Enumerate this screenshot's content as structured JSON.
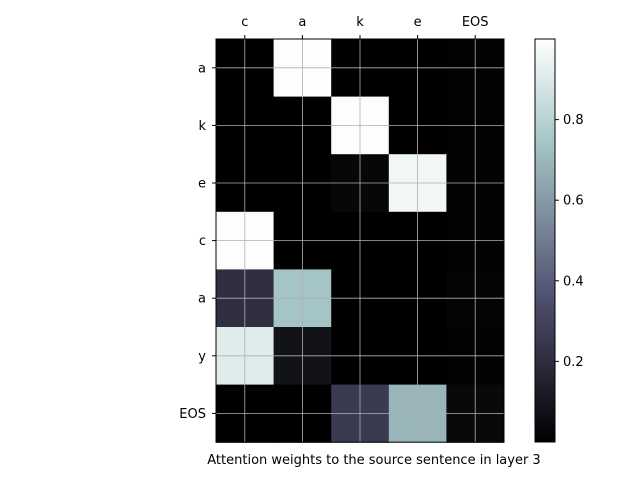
{
  "chart_data": {
    "type": "heatmap",
    "title": "",
    "xlabel": "Attention weights to the source sentence in layer 3",
    "ylabel": "",
    "x_categories": [
      "c",
      "a",
      "k",
      "e",
      "EOS"
    ],
    "y_categories": [
      "a",
      "k",
      "e",
      "c",
      "a",
      "y",
      "EOS"
    ],
    "values": [
      [
        0.0,
        0.99,
        0.0,
        0.0,
        0.01
      ],
      [
        0.0,
        0.0,
        0.99,
        0.0,
        0.01
      ],
      [
        0.0,
        0.0,
        0.03,
        0.96,
        0.01
      ],
      [
        0.99,
        0.0,
        0.0,
        0.0,
        0.01
      ],
      [
        0.21,
        0.74,
        0.0,
        0.0,
        0.02
      ],
      [
        0.91,
        0.08,
        0.0,
        0.0,
        0.01
      ],
      [
        0.0,
        0.0,
        0.26,
        0.69,
        0.04
      ]
    ],
    "x_axis_position": "top",
    "grid": true,
    "colormap": "bone",
    "colorbar": {
      "range": [
        0.0,
        1.0
      ],
      "ticks": [
        0.2,
        0.4,
        0.6,
        0.8
      ],
      "tick_labels": [
        "0.2",
        "0.4",
        "0.6",
        "0.8"
      ]
    }
  }
}
